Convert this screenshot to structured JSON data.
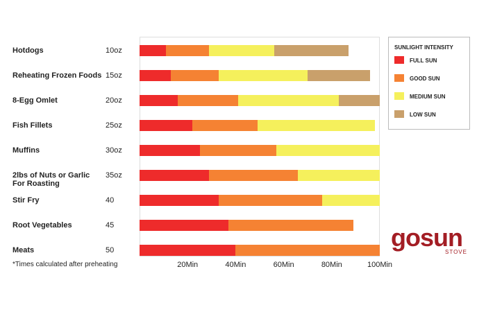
{
  "chart_data": {
    "type": "bar",
    "orientation": "horizontal",
    "stacked": true,
    "categories": [
      "Hotdogs",
      "Reheating Frozen Foods",
      "8-Egg Omlet",
      "Fish Fillets",
      "Muffins",
      "2lbs of Nuts or Garlic For Roasting",
      "Stir Fry",
      "Root Vegetables",
      "Meats"
    ],
    "weights": [
      "10oz",
      "15oz",
      "20oz",
      "25oz",
      "30oz",
      "35oz",
      "40",
      "45",
      "50"
    ],
    "series": [
      {
        "name": "FULL SUN",
        "color": "#ee2b2b",
        "values": [
          11,
          13,
          16,
          22,
          25,
          29,
          33,
          37,
          40
        ]
      },
      {
        "name": "GOOD SUN",
        "color": "#f58233",
        "values": [
          18,
          20,
          25,
          27,
          32,
          37,
          43,
          52,
          60
        ]
      },
      {
        "name": "MEDIUM SUN",
        "color": "#f5f05c",
        "values": [
          27,
          37,
          42,
          49,
          43,
          34,
          24,
          null,
          null
        ]
      },
      {
        "name": "LOW SUN",
        "color": "#c9a06b",
        "values": [
          31,
          26,
          17,
          null,
          null,
          null,
          null,
          null,
          null
        ]
      }
    ],
    "xlim": [
      0,
      100
    ],
    "xticks": [
      {
        "value": 20,
        "label": "20Min"
      },
      {
        "value": 40,
        "label": "40Min"
      },
      {
        "value": 60,
        "label": "60Min"
      },
      {
        "value": 80,
        "label": "80Min"
      },
      {
        "value": 100,
        "label": "100Min"
      }
    ],
    "legend_title": "SUNLIGHT INTENSITY",
    "legend_position": "right",
    "footnote": "*Times calculated after preheating",
    "brand": {
      "name": "gosun",
      "tagline": "STOVE"
    }
  }
}
